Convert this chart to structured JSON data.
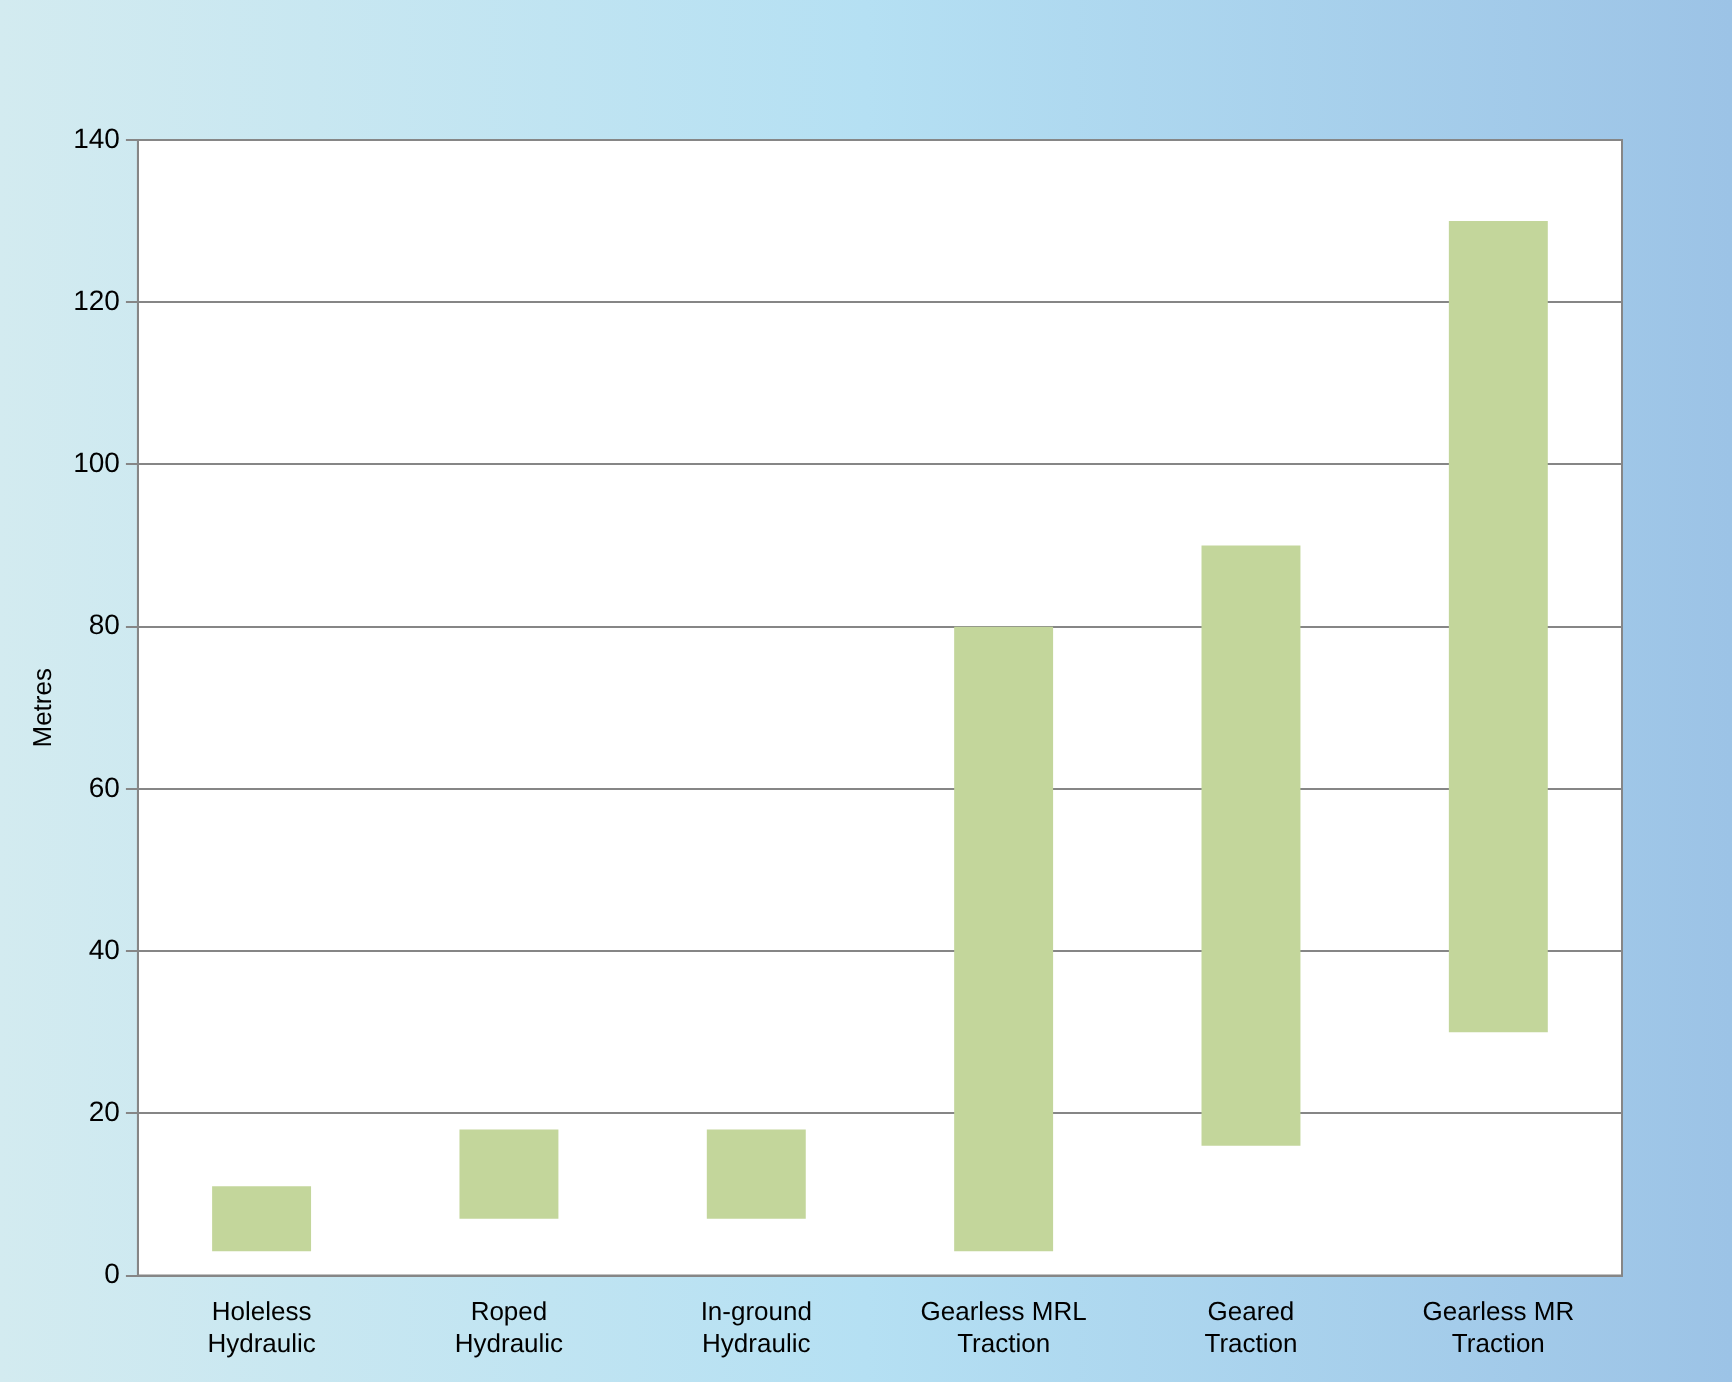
{
  "chart_data": {
    "type": "bar",
    "ylabel": "Metres",
    "categories": [
      "Holeless Hydraulic",
      "Roped Hydraulic",
      "In-ground Hydraulic",
      "Gearless MRL Traction",
      "Geared Traction",
      "Gearless MR Traction"
    ],
    "base": [
      3,
      7,
      7,
      3,
      16,
      30
    ],
    "values": [
      8,
      11,
      11,
      77,
      74,
      100
    ],
    "color": "#c3d69b",
    "ylim": [
      0,
      140
    ],
    "yticks": [
      0,
      20,
      40,
      60,
      80,
      100,
      120,
      140
    ],
    "grid": "y",
    "legend": false
  }
}
